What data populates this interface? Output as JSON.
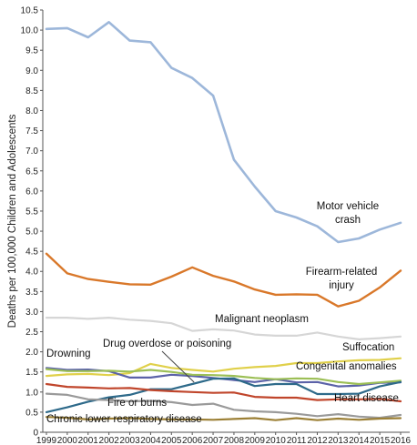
{
  "chart_data": {
    "type": "line",
    "title": "",
    "xlabel": "",
    "ylabel": "Deaths per 100,000 Children and Adolescents",
    "x": [
      1999,
      2000,
      2001,
      2002,
      2003,
      2004,
      2005,
      2006,
      2007,
      2008,
      2009,
      2010,
      2011,
      2012,
      2013,
      2014,
      2015,
      2016
    ],
    "xticks": [
      "1999",
      "2000",
      "2001",
      "2002",
      "2003",
      "2004",
      "2005",
      "2006",
      "2007",
      "2008",
      "2009",
      "2010",
      "2011",
      "2012",
      "2013",
      "2014",
      "2015",
      "2016"
    ],
    "ylim": [
      0,
      10.5
    ],
    "yticks": [
      "0",
      "0.5",
      "1.0",
      "1.5",
      "2.0",
      "2.5",
      "3.0",
      "3.5",
      "4.0",
      "4.5",
      "5.0",
      "5.5",
      "6.0",
      "6.5",
      "7.0",
      "7.5",
      "8.0",
      "8.5",
      "9.0",
      "9.5",
      "10.0",
      "10.5"
    ],
    "grid": false,
    "legend": "none",
    "series": [
      {
        "key": "motor",
        "name": "Motor vehicle crash",
        "color": "#9db7da",
        "lines": [
          "Motor vehicle",
          "crash"
        ],
        "values": [
          10.03,
          10.05,
          9.82,
          10.2,
          9.74,
          9.7,
          9.06,
          8.81,
          8.37,
          6.78,
          6.11,
          5.5,
          5.34,
          5.12,
          4.73,
          4.82,
          5.04,
          5.21
        ]
      },
      {
        "key": "firearm",
        "name": "Firearm-related injury",
        "color": "#d9782a",
        "lines": [
          "Firearm-related",
          "injury"
        ],
        "values": [
          4.44,
          3.95,
          3.81,
          3.74,
          3.68,
          3.67,
          3.87,
          4.1,
          3.89,
          3.75,
          3.55,
          3.42,
          3.43,
          3.42,
          3.13,
          3.27,
          3.6,
          4.02
        ]
      },
      {
        "key": "malignant",
        "name": "Malignant neoplasm",
        "color": "#d6d6d6",
        "lines": [
          "Malignant neoplasm"
        ],
        "values": [
          2.85,
          2.85,
          2.82,
          2.85,
          2.8,
          2.77,
          2.71,
          2.52,
          2.56,
          2.53,
          2.43,
          2.4,
          2.4,
          2.48,
          2.38,
          2.31,
          2.34,
          2.38
        ]
      },
      {
        "key": "suffocation",
        "name": "Suffocation",
        "color": "#e0d04a",
        "lines": [
          "Suffocation"
        ],
        "values": [
          1.4,
          1.44,
          1.45,
          1.42,
          1.47,
          1.7,
          1.6,
          1.55,
          1.51,
          1.58,
          1.62,
          1.65,
          1.72,
          1.72,
          1.76,
          1.79,
          1.8,
          1.84
        ]
      },
      {
        "key": "drowning",
        "name": "Drowning",
        "color": "#5b62a8",
        "lines": [
          "Drowning"
        ],
        "values": [
          1.6,
          1.55,
          1.56,
          1.52,
          1.36,
          1.36,
          1.43,
          1.4,
          1.35,
          1.3,
          1.25,
          1.32,
          1.24,
          1.25,
          1.14,
          1.16,
          1.23,
          1.24
        ]
      },
      {
        "key": "congenital",
        "name": "Congenital anomalies",
        "color": "#9cbf56",
        "lines": [
          "Congenital anomalies"
        ],
        "values": [
          1.57,
          1.52,
          1.52,
          1.53,
          1.51,
          1.55,
          1.5,
          1.43,
          1.42,
          1.4,
          1.35,
          1.32,
          1.34,
          1.33,
          1.25,
          1.2,
          1.24,
          1.28
        ]
      },
      {
        "key": "drug",
        "name": "Drug overdose or poisoning",
        "color": "#2e6a8a",
        "lines": [
          "Drug overdose or poisoning"
        ],
        "values": [
          0.5,
          0.62,
          0.76,
          0.87,
          0.93,
          1.07,
          1.07,
          1.2,
          1.33,
          1.34,
          1.15,
          1.2,
          1.2,
          0.95,
          0.95,
          0.96,
          1.14,
          1.25
        ]
      },
      {
        "key": "heart",
        "name": "Heart disease",
        "color": "#c0462c",
        "lines": [
          "Heart disease"
        ],
        "values": [
          1.2,
          1.13,
          1.11,
          1.09,
          1.1,
          1.05,
          1.02,
          1.0,
          0.98,
          0.99,
          0.88,
          0.86,
          0.86,
          0.8,
          0.82,
          0.82,
          0.83,
          0.77
        ]
      },
      {
        "key": "fire",
        "name": "Fire or burns",
        "color": "#9a9a9a",
        "lines": [
          "Fire or burns"
        ],
        "values": [
          0.96,
          0.93,
          0.82,
          0.8,
          0.77,
          0.78,
          0.75,
          0.68,
          0.71,
          0.56,
          0.52,
          0.5,
          0.46,
          0.4,
          0.45,
          0.39,
          0.36,
          0.43
        ]
      },
      {
        "key": "chronic",
        "name": "Chronic lower respiratory disease",
        "color": "#9c8036",
        "lines": [
          "Chronic lower respiratory disease"
        ],
        "values": [
          0.38,
          0.36,
          0.32,
          0.34,
          0.35,
          0.33,
          0.32,
          0.32,
          0.31,
          0.33,
          0.35,
          0.3,
          0.35,
          0.3,
          0.34,
          0.31,
          0.34,
          0.35
        ]
      }
    ]
  }
}
